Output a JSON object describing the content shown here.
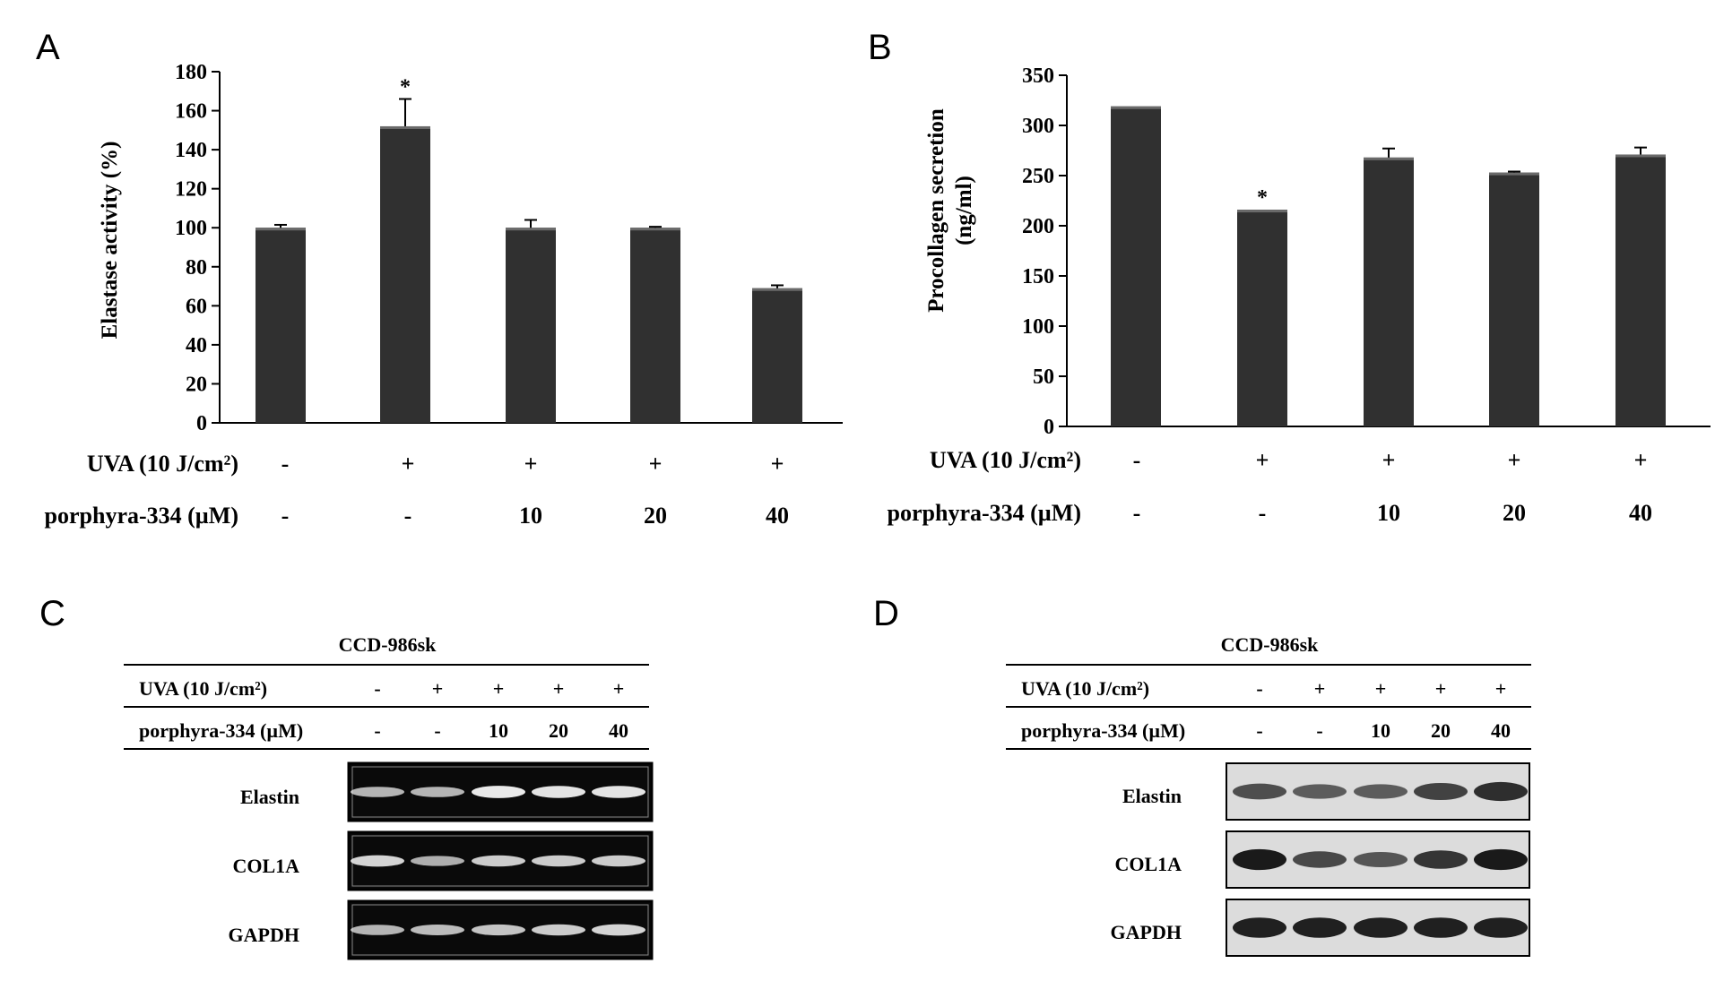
{
  "chart_data": [
    {
      "panel": "A",
      "type": "bar",
      "ylabel": "Elastase activity (%)",
      "ylim": [
        0,
        180
      ],
      "yticks": [
        "0",
        "20",
        "40",
        "60",
        "80",
        "100",
        "120",
        "140",
        "160",
        "180"
      ],
      "values": [
        100,
        152,
        100,
        100,
        69
      ],
      "errors": [
        1.5,
        14,
        4,
        0.5,
        1.5
      ],
      "significance": [
        "",
        "*",
        "",
        "",
        ""
      ],
      "conditions": [
        {
          "label": "UVA (10 J/cm²)",
          "values": [
            "-",
            "+",
            "+",
            "+",
            "+"
          ]
        },
        {
          "label": "porphyra-334 (µM)",
          "values": [
            "-",
            "-",
            "10",
            "20",
            "40"
          ]
        }
      ]
    },
    {
      "panel": "B",
      "type": "bar",
      "ylabel_lines": [
        "Procollagen secretion",
        "(ng/ml)"
      ],
      "ylim": [
        0,
        350
      ],
      "yticks": [
        "0",
        "50",
        "100",
        "150",
        "200",
        "250",
        "300",
        "350"
      ],
      "values": [
        319,
        216,
        268,
        253,
        271
      ],
      "errors": [
        0,
        0,
        9,
        1,
        7
      ],
      "significance": [
        "",
        "*",
        "",
        "",
        ""
      ],
      "conditions": [
        {
          "label": "UVA (10 J/cm²)",
          "values": [
            "-",
            "+",
            "+",
            "+",
            "+"
          ]
        },
        {
          "label": "porphyra-334 (µM)",
          "values": [
            "-",
            "-",
            "10",
            "20",
            "40"
          ]
        }
      ]
    }
  ],
  "blots": [
    {
      "panel": "C",
      "cell_line": "CCD-986sk",
      "conditions": [
        {
          "label": "UVA (10 J/cm²)",
          "values": [
            "-",
            "+",
            "+",
            "+",
            "+"
          ]
        },
        {
          "label": "porphyra-334 (µM)",
          "values": [
            "-",
            "-",
            "10",
            "20",
            "40"
          ]
        }
      ],
      "rows": [
        "Elastin",
        "COL1A",
        "GAPDH"
      ],
      "style": "gel",
      "intensity": [
        [
          0.6,
          0.6,
          0.95,
          0.9,
          0.9
        ],
        [
          0.8,
          0.55,
          0.75,
          0.75,
          0.75
        ],
        [
          0.6,
          0.65,
          0.7,
          0.75,
          0.8
        ]
      ]
    },
    {
      "panel": "D",
      "cell_line": "CCD-986sk",
      "conditions": [
        {
          "label": "UVA (10 J/cm²)",
          "values": [
            "-",
            "+",
            "+",
            "+",
            "+"
          ]
        },
        {
          "label": "porphyra-334 (µM)",
          "values": [
            "-",
            "-",
            "10",
            "20",
            "40"
          ]
        }
      ],
      "rows": [
        "Elastin",
        "COL1A",
        "GAPDH"
      ],
      "style": "western",
      "intensity": [
        [
          0.55,
          0.45,
          0.45,
          0.65,
          0.8
        ],
        [
          0.95,
          0.6,
          0.5,
          0.75,
          0.95
        ],
        [
          0.9,
          0.9,
          0.9,
          0.9,
          0.9
        ]
      ]
    }
  ],
  "colors": {
    "bar": "#303030",
    "bar_highlight": "#6a6a6a",
    "axis": "#000000",
    "gel_bg": "#0a0a0a",
    "gel_band": "#f2f2f2",
    "western_bg": "#dcdcdc",
    "western_band": "#141414"
  }
}
